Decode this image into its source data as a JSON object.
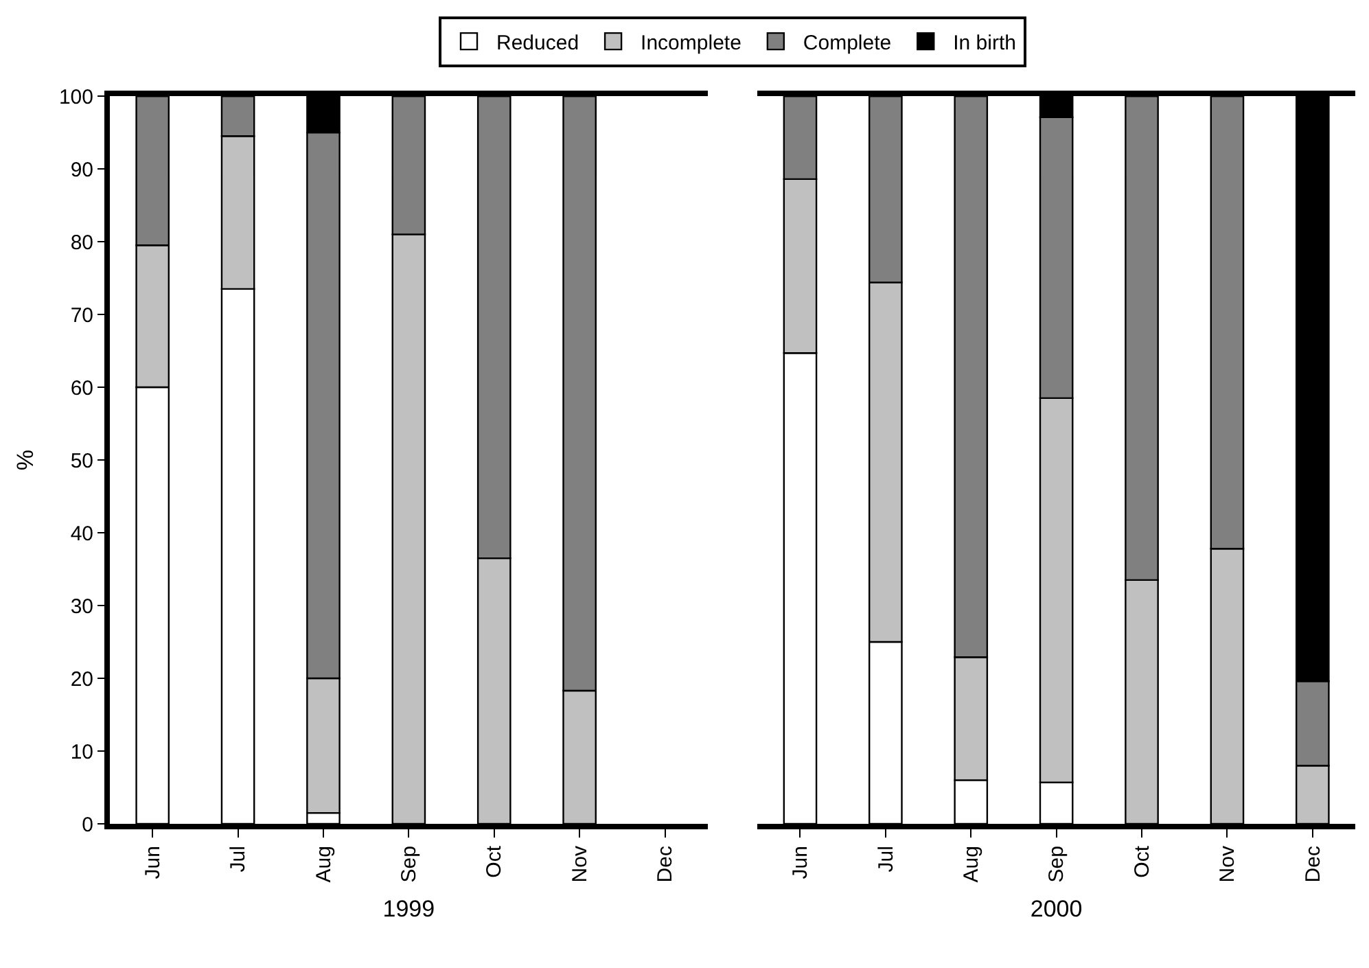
{
  "chart_data": [
    {
      "type": "bar",
      "stacked": true,
      "ylabel": "%",
      "xlabel": "1999",
      "categories": [
        "Jun",
        "Jul",
        "Aug",
        "Sep",
        "Oct",
        "Nov",
        "Dec"
      ],
      "ylim": [
        0,
        100
      ],
      "yticks": [
        0,
        10,
        20,
        30,
        40,
        50,
        60,
        70,
        80,
        90,
        100
      ],
      "legend": "top",
      "series": [
        {
          "name": "Reduced",
          "color": "#ffffff",
          "values": [
            60,
            73.5,
            1.5,
            0,
            0,
            0,
            null
          ]
        },
        {
          "name": "Incomplete",
          "color": "#c0c0c0",
          "values": [
            19.5,
            21,
            18.5,
            81,
            36.5,
            18.3,
            null
          ]
        },
        {
          "name": "Complete",
          "color": "#808080",
          "values": [
            20.5,
            5.5,
            75,
            19,
            63.5,
            81.7,
            null
          ]
        },
        {
          "name": "In birth",
          "color": "#000000",
          "values": [
            0,
            0,
            5,
            0,
            0,
            0,
            null
          ]
        }
      ]
    },
    {
      "type": "bar",
      "stacked": true,
      "xlabel": "2000",
      "categories": [
        "Jun",
        "Jul",
        "Aug",
        "Sep",
        "Oct",
        "Nov",
        "Dec"
      ],
      "ylim": [
        0,
        100
      ],
      "yticks": [
        0,
        10,
        20,
        30,
        40,
        50,
        60,
        70,
        80,
        90,
        100
      ],
      "tick_labels": "x",
      "series": [
        {
          "color": "#ffffff",
          "values": [
            64.7,
            25,
            6,
            5.7,
            0,
            0,
            0
          ]
        },
        {
          "color": "#c0c0c0",
          "values": [
            23.9,
            49.4,
            16.9,
            52.8,
            33.5,
            37.8,
            8
          ]
        },
        {
          "color": "#808080",
          "values": [
            11.4,
            25.6,
            77.1,
            38.6,
            66.5,
            62.2,
            11.6
          ]
        },
        {
          "color": "#000000",
          "values": [
            0,
            0,
            0,
            2.9,
            0,
            0,
            80.4
          ]
        }
      ]
    }
  ]
}
